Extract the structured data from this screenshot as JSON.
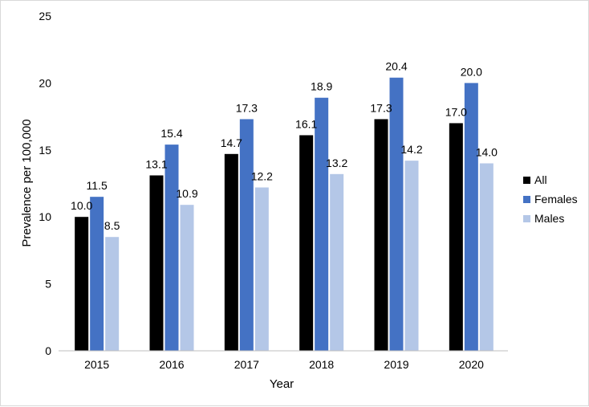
{
  "chart_data": {
    "type": "bar",
    "title": "",
    "xlabel": "Year",
    "ylabel": "Prevalence per 100,000",
    "ylim": [
      0,
      25
    ],
    "yticks": [
      "0",
      "5",
      "10",
      "15",
      "20",
      "25"
    ],
    "grid": false,
    "legend_position": "right",
    "categories": [
      "2015",
      "2016",
      "2017",
      "2018",
      "2019",
      "2020"
    ],
    "series": [
      {
        "name": "All",
        "color": "#000000",
        "values": [
          10.0,
          13.1,
          14.7,
          16.1,
          17.3,
          17.0
        ],
        "labels": [
          "10.0",
          "13.1",
          "14.7",
          "16.1",
          "17.3",
          "17.0"
        ]
      },
      {
        "name": "Females",
        "color": "#4472c4",
        "values": [
          11.5,
          15.4,
          17.3,
          18.9,
          20.4,
          20.0
        ],
        "labels": [
          "11.5",
          "15.4",
          "17.3",
          "18.9",
          "20.4",
          "20.0"
        ]
      },
      {
        "name": "Males",
        "color": "#b4c7e7",
        "values": [
          8.5,
          10.9,
          12.2,
          13.2,
          14.2,
          14.0
        ],
        "labels": [
          "8.5",
          "10.9",
          "12.2",
          "13.2",
          "14.2",
          "14.0"
        ]
      }
    ]
  }
}
